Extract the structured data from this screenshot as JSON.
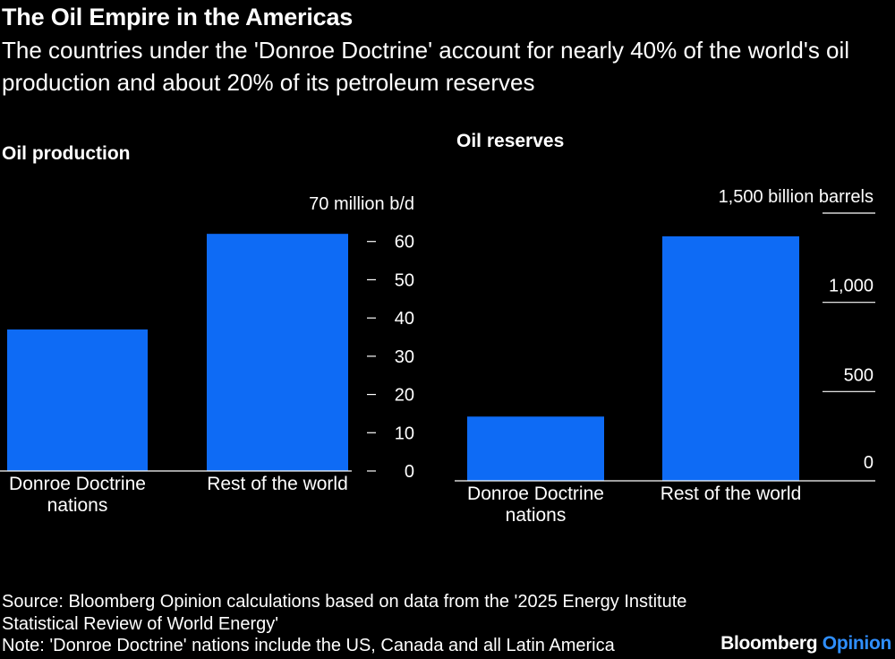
{
  "title": "The Oil Empire in the Americas",
  "subtitle": "The countries under the 'Donroe Doctrine' account for nearly 40% of the world's oil production and about 20% of its petroleum reserves",
  "colors": {
    "bar": "#0e6bf5",
    "background": "#000000",
    "text": "#ffffff",
    "accent": "#2f8fff"
  },
  "chart_data": [
    {
      "type": "bar",
      "panel_title": "Oil production",
      "categories": [
        [
          "Donroe Doctrine",
          "nations"
        ],
        [
          "Rest of the world"
        ]
      ],
      "values": [
        37,
        62
      ],
      "ylim": [
        0,
        70
      ],
      "yticks": [
        0,
        10,
        20,
        30,
        40,
        50,
        60,
        70
      ],
      "ytick_labels": [
        "0",
        "10",
        "20",
        "30",
        "40",
        "50",
        "60",
        "70 million b/d"
      ],
      "ylabel": "million b/d",
      "axis_position": "right",
      "tick_style": "dash"
    },
    {
      "type": "bar",
      "panel_title": "Oil reserves",
      "categories": [
        [
          "Donroe Doctrine",
          "nations"
        ],
        [
          "Rest of the world"
        ]
      ],
      "values": [
        360,
        1370
      ],
      "ylim": [
        0,
        1500
      ],
      "yticks": [
        0,
        500,
        1000,
        1500
      ],
      "ytick_labels": [
        "0",
        "500",
        "1,000",
        "1,500 billion barrels"
      ],
      "ylabel": "billion barrels",
      "axis_position": "right",
      "tick_style": "line"
    }
  ],
  "footer": {
    "source": "Source: Bloomberg Opinion calculations based on data from the '2025 Energy Institute Statistical Review of World Energy'",
    "note": "Note: 'Donroe Doctrine' nations include the US, Canada and all Latin America"
  },
  "brand": {
    "name": "Bloomberg",
    "suffix": "Opinion"
  }
}
